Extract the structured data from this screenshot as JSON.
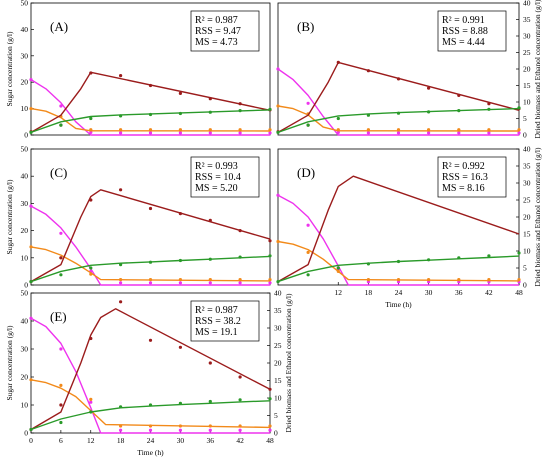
{
  "colors": {
    "ethanol": "#9b1c1c",
    "biomass": "#2a9a2a",
    "glucose": "#ee33ee",
    "xylose": "#f28a1a",
    "axis": "#000000"
  },
  "chart_data": [
    {
      "type": "line",
      "panel_label": "(A)",
      "stats": [
        "R² = 0.987",
        "RSS = 9.47",
        "MS = 4.73"
      ],
      "ylabel": "Sugar concentration (g/l)",
      "y2label": "",
      "xlabel": "",
      "xlim": [
        0,
        48
      ],
      "ylim": [
        0,
        50
      ],
      "y2lim": [
        0,
        40
      ],
      "x_ticks": [],
      "y_ticks": [
        0,
        10,
        20,
        30,
        40,
        50
      ],
      "y2_ticks": [],
      "series": [
        {
          "key": "glucose",
          "axis": "left",
          "line_x": [
            0,
            3,
            6,
            9,
            12,
            48
          ],
          "line_y": [
            21,
            17.5,
            12.2,
            5,
            0,
            0
          ],
          "points_x": [
            0,
            6,
            12,
            18,
            24,
            30,
            36,
            42,
            48
          ],
          "points_y": [
            21,
            11,
            1,
            0.8,
            0.8,
            0.8,
            0.8,
            0.8,
            0.8
          ]
        },
        {
          "key": "xylose",
          "axis": "left",
          "line_x": [
            0,
            3,
            6,
            9,
            12,
            48
          ],
          "line_y": [
            10,
            9,
            6.6,
            2.5,
            1.6,
            1.5
          ],
          "points_x": [
            0,
            6,
            12,
            18,
            24,
            30,
            36,
            42,
            48
          ],
          "points_y": [
            10,
            7,
            2,
            2,
            2,
            2,
            2,
            2,
            2
          ]
        },
        {
          "key": "ethanol",
          "axis": "right",
          "line_x": [
            0,
            6,
            10,
            12,
            48
          ],
          "line_y": [
            0.8,
            6,
            14,
            19,
            7.5
          ],
          "points_x": [
            0,
            6,
            12,
            18,
            24,
            30,
            36,
            42,
            48
          ],
          "points_y": [
            1,
            3,
            18.8,
            18,
            15,
            12.6,
            11,
            9.5,
            7.6
          ]
        },
        {
          "key": "biomass",
          "axis": "right",
          "line_x": [
            0,
            6,
            12,
            18,
            24,
            30,
            36,
            42,
            48
          ],
          "line_y": [
            0.8,
            4,
            5.6,
            6.1,
            6.4,
            6.7,
            7,
            7.3,
            7.6
          ],
          "points_x": [
            0,
            6,
            12,
            18,
            24,
            30,
            36,
            42,
            48
          ],
          "points_y": [
            0.8,
            3,
            5,
            5.8,
            6.2,
            6.5,
            6.9,
            7.4,
            7.8
          ]
        }
      ]
    },
    {
      "type": "line",
      "panel_label": "(B)",
      "stats": [
        "R² = 0.991",
        "RSS = 8.88",
        "MS = 4.44"
      ],
      "ylabel": "",
      "y2label": "Dried biomass and Ethanol concentration (g/l)",
      "xlabel": "",
      "xlim": [
        0,
        48
      ],
      "ylim": [
        0,
        50
      ],
      "y2lim": [
        0,
        40
      ],
      "x_ticks": [],
      "y_ticks": [],
      "y2_ticks": [
        0,
        5,
        10,
        15,
        20,
        25,
        30,
        35,
        40
      ],
      "series": [
        {
          "key": "glucose",
          "axis": "left",
          "line_x": [
            0,
            3,
            6,
            9,
            12,
            48
          ],
          "line_y": [
            25,
            21,
            15,
            7,
            0,
            0
          ],
          "points_x": [
            0,
            6,
            12,
            18,
            24,
            30,
            36,
            42,
            48
          ],
          "points_y": [
            25,
            12,
            1,
            0.8,
            0.8,
            0.8,
            0.8,
            0.8,
            0.8
          ]
        },
        {
          "key": "xylose",
          "axis": "left",
          "line_x": [
            0,
            3,
            6,
            9,
            12,
            48
          ],
          "line_y": [
            11,
            10,
            7.6,
            3,
            1.6,
            1.5
          ],
          "points_x": [
            0,
            6,
            12,
            18,
            24,
            30,
            36,
            42,
            48
          ],
          "points_y": [
            11,
            8,
            2,
            2,
            2,
            2,
            2,
            2,
            2
          ]
        },
        {
          "key": "ethanol",
          "axis": "right",
          "line_x": [
            0,
            6,
            10,
            12,
            48
          ],
          "line_y": [
            0.8,
            6,
            16,
            22,
            7.5
          ],
          "points_x": [
            0,
            6,
            12,
            18,
            24,
            30,
            36,
            42,
            48
          ],
          "points_y": [
            1,
            3,
            22,
            19.5,
            17,
            14.2,
            12,
            9.5,
            8
          ]
        },
        {
          "key": "biomass",
          "axis": "right",
          "line_x": [
            0,
            6,
            12,
            18,
            24,
            30,
            36,
            42,
            48
          ],
          "line_y": [
            0.8,
            4,
            5.8,
            6.4,
            6.8,
            7.1,
            7.4,
            7.7,
            8
          ],
          "points_x": [
            0,
            6,
            12,
            18,
            24,
            30,
            36,
            42,
            48
          ],
          "points_y": [
            0.8,
            3,
            5,
            6,
            6.6,
            7,
            7.4,
            7.8,
            8.2
          ]
        }
      ]
    },
    {
      "type": "line",
      "panel_label": "(C)",
      "stats": [
        "R² = 0.993",
        "RSS = 10.4",
        "MS = 5.20"
      ],
      "ylabel": "Sugar concentration (g/l)",
      "y2label": "",
      "xlabel": "",
      "xlim": [
        0,
        48
      ],
      "ylim": [
        0,
        50
      ],
      "y2lim": [
        0,
        40
      ],
      "x_ticks": [],
      "y_ticks": [
        0,
        10,
        20,
        30,
        40,
        50
      ],
      "y2_ticks": [],
      "series": [
        {
          "key": "glucose",
          "axis": "left",
          "line_x": [
            0,
            3,
            6,
            9,
            12,
            14,
            48
          ],
          "line_y": [
            29,
            26,
            21,
            14,
            6,
            0,
            0
          ],
          "points_x": [
            0,
            6,
            12,
            18,
            24,
            30,
            36,
            42,
            48
          ],
          "points_y": [
            29,
            19,
            5,
            0.8,
            0.8,
            0.8,
            0.8,
            0.8,
            0.8
          ]
        },
        {
          "key": "xylose",
          "axis": "left",
          "line_x": [
            0,
            3,
            6,
            9,
            12,
            14,
            48
          ],
          "line_y": [
            14,
            13,
            11,
            8,
            4.5,
            2,
            1.5
          ],
          "points_x": [
            0,
            6,
            12,
            18,
            24,
            30,
            36,
            42,
            48
          ],
          "points_y": [
            14,
            10,
            4,
            2,
            2,
            2,
            2,
            2,
            2
          ]
        },
        {
          "key": "ethanol",
          "axis": "right",
          "line_x": [
            0,
            6,
            10,
            12,
            14,
            48
          ],
          "line_y": [
            1,
            6,
            20,
            26,
            28,
            13.5
          ],
          "points_x": [
            0,
            6,
            12,
            18,
            24,
            30,
            36,
            42,
            48
          ],
          "points_y": [
            1,
            8,
            25,
            28,
            22.5,
            21,
            19,
            16,
            13
          ]
        },
        {
          "key": "biomass",
          "axis": "right",
          "line_x": [
            0,
            6,
            12,
            18,
            24,
            30,
            36,
            42,
            48
          ],
          "line_y": [
            1,
            4,
            5.8,
            6.4,
            6.8,
            7.2,
            7.6,
            8,
            8.4
          ],
          "points_x": [
            0,
            6,
            12,
            18,
            24,
            30,
            36,
            42,
            48
          ],
          "points_y": [
            1,
            3,
            5,
            6,
            6.7,
            7.2,
            7.6,
            8.2,
            8.6
          ]
        }
      ]
    },
    {
      "type": "line",
      "panel_label": "(D)",
      "stats": [
        "R² = 0.992",
        "RSS = 16.3",
        "MS = 8.16"
      ],
      "ylabel": "",
      "y2label": "Dried biomass and Ethanol concentration (g/l)",
      "xlabel": "Time (h)",
      "xlim": [
        0,
        48
      ],
      "ylim": [
        0,
        50
      ],
      "y2lim": [
        0,
        40
      ],
      "x_ticks": [
        12,
        18,
        24,
        30,
        36,
        42,
        48
      ],
      "y_ticks": [],
      "y2_ticks": [
        0,
        5,
        10,
        15,
        20,
        25,
        30,
        35,
        40
      ],
      "series": [
        {
          "key": "glucose",
          "axis": "left",
          "line_x": [
            0,
            3,
            6,
            9,
            12,
            14,
            48
          ],
          "line_y": [
            33,
            30,
            25,
            17,
            7,
            0,
            0
          ],
          "points_x": [
            0,
            6,
            12,
            18,
            24,
            30,
            36,
            42,
            48
          ],
          "points_y": [
            33,
            22,
            6,
            1.2,
            1.2,
            1.2,
            1.2,
            1.2,
            1.2
          ]
        },
        {
          "key": "xylose",
          "axis": "left",
          "line_x": [
            0,
            3,
            6,
            9,
            12,
            14,
            48
          ],
          "line_y": [
            16,
            15,
            13,
            9.5,
            5,
            2,
            1.5
          ],
          "points_x": [
            0,
            6,
            12,
            18,
            24,
            30,
            36,
            42,
            48
          ],
          "points_y": [
            16,
            12,
            5,
            2,
            2,
            2,
            2,
            2,
            2
          ]
        },
        {
          "key": "ethanol",
          "axis": "right",
          "line_x": [
            0,
            6,
            10,
            12,
            15,
            48
          ],
          "line_y": [
            1,
            6,
            22,
            29,
            32,
            15
          ]
        },
        {
          "key": "biomass",
          "axis": "right",
          "line_x": [
            0,
            6,
            12,
            18,
            24,
            30,
            36,
            42,
            48
          ],
          "line_y": [
            1,
            4,
            5.8,
            6.4,
            6.9,
            7.3,
            7.7,
            8.1,
            8.5
          ],
          "points_x": [
            0,
            6,
            12,
            18,
            24,
            30,
            36,
            42,
            48
          ],
          "points_y": [
            1,
            3,
            5,
            6.2,
            6.9,
            7.4,
            8,
            8.6,
            9.4
          ]
        }
      ]
    },
    {
      "type": "line",
      "panel_label": "(E)",
      "stats": [
        "R² = 0.987",
        "RSS = 38.2",
        "MS = 19.1"
      ],
      "ylabel": "Sugar concentration (g/l)",
      "y2label": "Dried biomass and Ethanol concentration (g/l)",
      "xlabel": "Time (h)",
      "xlim": [
        0,
        48
      ],
      "ylim": [
        0,
        50
      ],
      "y2lim": [
        0,
        40
      ],
      "x_ticks": [
        0,
        6,
        12,
        18,
        24,
        30,
        36,
        42,
        48
      ],
      "y_ticks": [
        0,
        10,
        20,
        30,
        40,
        50
      ],
      "y2_ticks": [
        0,
        5,
        10,
        15,
        20,
        25,
        30,
        35,
        40
      ],
      "series": [
        {
          "key": "glucose",
          "axis": "left",
          "line_x": [
            0,
            3,
            6,
            9,
            12,
            14,
            48
          ],
          "line_y": [
            41,
            38,
            32,
            22,
            9,
            0,
            0
          ],
          "points_x": [
            0,
            6,
            12,
            18,
            24,
            30,
            36,
            42,
            48
          ],
          "points_y": [
            41,
            30,
            11,
            1,
            1,
            1,
            1,
            1,
            1
          ]
        },
        {
          "key": "xylose",
          "axis": "left",
          "line_x": [
            0,
            3,
            6,
            9,
            12,
            15,
            48
          ],
          "line_y": [
            19,
            18,
            16,
            13,
            8,
            3,
            2
          ],
          "points_x": [
            0,
            6,
            12,
            18,
            24,
            30,
            36,
            42,
            48
          ],
          "points_y": [
            19,
            17,
            12,
            2.5,
            2.5,
            2.5,
            2.5,
            2.5,
            2.5
          ]
        },
        {
          "key": "ethanol",
          "axis": "right",
          "line_x": [
            0,
            6,
            10,
            12,
            14,
            17,
            48
          ],
          "line_y": [
            1,
            6,
            20,
            28,
            33,
            35.5,
            12.5
          ],
          "points_x": [
            0,
            6,
            12,
            18,
            24,
            30,
            36,
            42,
            48
          ],
          "points_y": [
            1,
            8,
            27,
            37.5,
            26.5,
            24.5,
            20,
            16,
            12.5
          ]
        },
        {
          "key": "biomass",
          "axis": "right",
          "line_x": [
            0,
            6,
            12,
            18,
            24,
            30,
            36,
            42,
            48
          ],
          "line_y": [
            1,
            4,
            6,
            7.2,
            7.7,
            8.1,
            8.5,
            8.9,
            9.2
          ],
          "points_x": [
            0,
            6,
            12,
            18,
            24,
            30,
            36,
            42,
            48
          ],
          "points_y": [
            1,
            3,
            6,
            7.5,
            8,
            8.5,
            9,
            9.5,
            9.8
          ]
        }
      ]
    }
  ]
}
